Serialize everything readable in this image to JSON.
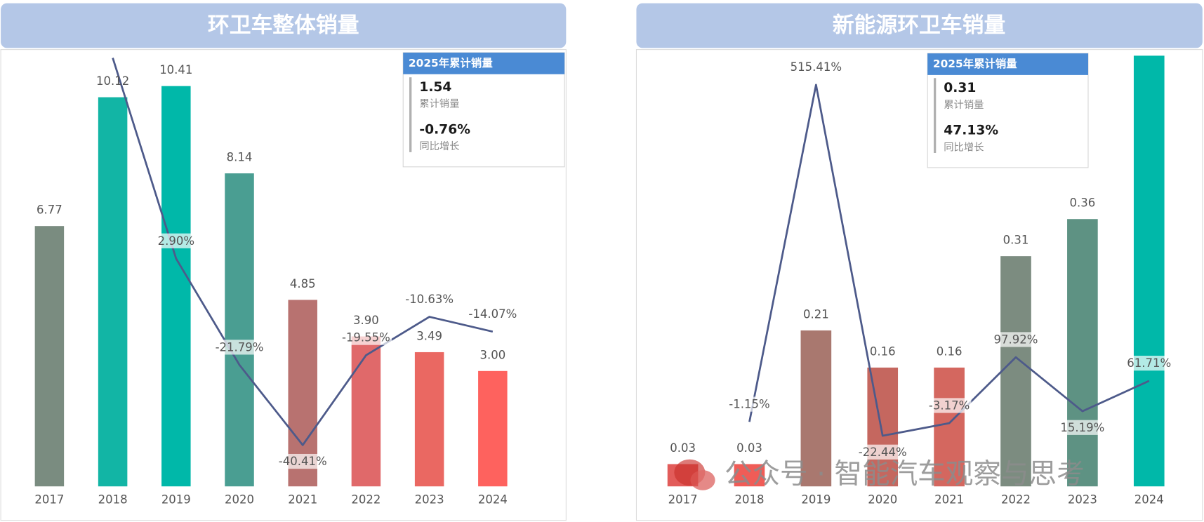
{
  "chart_data": [
    {
      "type": "combo",
      "title": "环卫车整体销量",
      "categories": [
        "2017",
        "2018",
        "2019",
        "2020",
        "2021",
        "2022",
        "2023",
        "2024"
      ],
      "series": [
        {
          "type": "bar",
          "values": [
            6.77,
            10.12,
            10.41,
            8.14,
            4.85,
            3.9,
            3.49,
            3.0
          ],
          "value_labels": [
            "6.77",
            "10.12",
            "10.41",
            "8.14",
            "4.85",
            "3.90",
            "3.49",
            "3.00"
          ],
          "colors": [
            "#7a8c80",
            "#12b5a5",
            "#00b8a9",
            "#4a9e92",
            "#b87270",
            "#e0696a",
            "#ea6862",
            "#fe625e"
          ]
        },
        {
          "type": "line",
          "axis": "y2",
          "color": "#4d5a8a",
          "values": [
            null,
            49.48,
            2.9,
            -21.79,
            -40.41,
            -19.55,
            -10.63,
            -14.07
          ],
          "value_labels": [
            null,
            null,
            "2.90%",
            "-21.79%",
            "-40.41%",
            "-19.55%",
            "-10.63%",
            "-14.07%"
          ]
        }
      ],
      "ylim": [
        0,
        11.2
      ],
      "y2lim": [
        -50,
        50
      ]
    },
    {
      "type": "combo",
      "title": "新能源环卫车销量",
      "categories": [
        "2017",
        "2018",
        "2019",
        "2020",
        "2021",
        "2022",
        "2023",
        "2024"
      ],
      "series": [
        {
          "type": "bar",
          "values": [
            0.03,
            0.03,
            0.21,
            0.16,
            0.16,
            0.31,
            0.36,
            0.58
          ],
          "value_labels": [
            "0.03",
            "0.03",
            "0.21",
            "0.16",
            "0.16",
            "0.31",
            "0.36",
            null
          ],
          "colors": [
            "#e25c5a",
            "#f05c57",
            "#a9786f",
            "#c5675f",
            "#d4675f",
            "#7c8c80",
            "#5e9283",
            "#00b8a9"
          ]
        },
        {
          "type": "line",
          "axis": "y2",
          "color": "#4d5a8a",
          "values": [
            null,
            -1.15,
            515.41,
            -22.44,
            -3.17,
            97.92,
            15.19,
            61.71
          ],
          "value_labels": [
            null,
            "-1.15%",
            "515.41%",
            "-22.44%",
            "-3.17%",
            "97.92%",
            "15.19%",
            "61.71%"
          ]
        }
      ],
      "ylim": [
        0,
        0.58
      ],
      "y2lim": [
        -100,
        560
      ]
    }
  ],
  "cards": [
    {
      "title": "2025年累计销量",
      "value": "1.54",
      "value_caption": "累计销量",
      "growth": "-0.76%",
      "growth_caption": "同比增长"
    },
    {
      "title": "2025年累计销量",
      "value": "0.31",
      "value_caption": "累计销量",
      "growth": "47.13%",
      "growth_caption": "同比增长"
    }
  ],
  "watermark": "公众号 · 智能汽车观察与思考"
}
